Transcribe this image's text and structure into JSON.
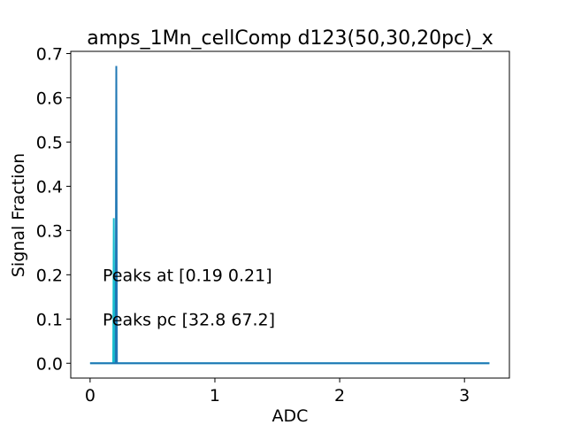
{
  "chart_data": {
    "type": "line",
    "title": "amps_1Mn_cellComp d123(50,30,20pc)_x",
    "xlabel": "ADC",
    "ylabel": "Signal Fraction",
    "xlim": [
      -0.155,
      3.36
    ],
    "ylim": [
      -0.0335,
      0.705
    ],
    "xticks": [
      0,
      1,
      2,
      3
    ],
    "yticks": [
      0.0,
      0.1,
      0.2,
      0.3,
      0.4,
      0.5,
      0.6,
      0.7
    ],
    "xtick_labels": [
      "0",
      "1",
      "2",
      "3"
    ],
    "ytick_labels": [
      "0.0",
      "0.1",
      "0.2",
      "0.3",
      "0.4",
      "0.5",
      "0.6",
      "0.7"
    ],
    "grid": false,
    "series": [
      {
        "color": "#17becf",
        "x": [
          0.0,
          0.185,
          0.19,
          0.195,
          3.2
        ],
        "y": [
          0.0,
          0.0,
          0.328,
          0.0,
          0.0
        ]
      },
      {
        "color": "#1f77b4",
        "x": [
          0.0,
          0.205,
          0.21,
          0.215,
          3.2
        ],
        "y": [
          0.0,
          0.0,
          0.672,
          0.0,
          0.0
        ]
      }
    ],
    "annotations": [
      {
        "text": "Peaks at [0.19 0.21]",
        "x": 0.1,
        "y": 0.2
      },
      {
        "text": "Peaks pc [32.8 67.2]",
        "x": 0.1,
        "y": 0.1
      }
    ]
  }
}
